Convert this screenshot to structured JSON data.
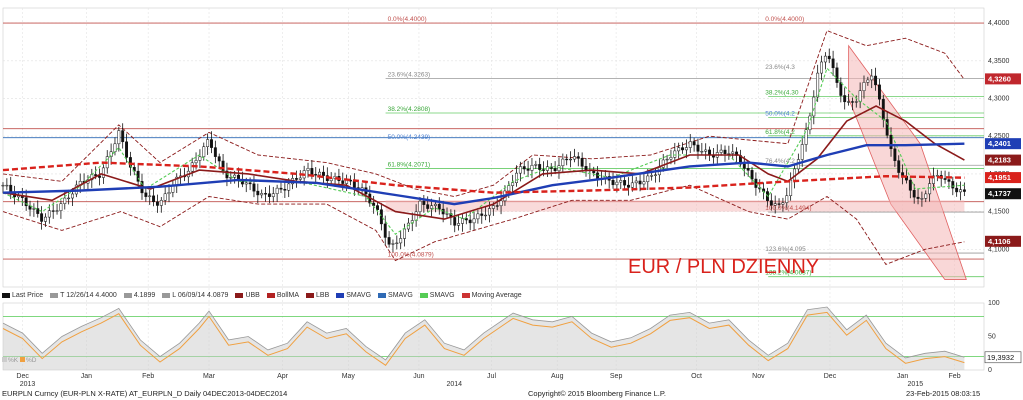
{
  "chart_data": {
    "type": "candlestick",
    "title": "EUR / PLN DZIENNY",
    "price_axis": {
      "min": 4.05,
      "max": 4.42,
      "ticks": [
        "4,1000",
        "4,1500",
        "4,2000",
        "4,2500",
        "4,3000",
        "4,3500",
        "4,4000"
      ]
    },
    "osc_axis": {
      "ticks": [
        "0",
        "50",
        "100"
      ]
    },
    "x_labels": [
      {
        "label": "Dec",
        "t": 0.02
      },
      {
        "label": "Jan",
        "t": 0.085
      },
      {
        "label": "Feb",
        "t": 0.148
      },
      {
        "label": "Mar",
        "t": 0.21
      },
      {
        "label": "Apr",
        "t": 0.285
      },
      {
        "label": "May",
        "t": 0.352
      },
      {
        "label": "Jun",
        "t": 0.424
      },
      {
        "label": "Jul",
        "t": 0.498
      },
      {
        "label": "Aug",
        "t": 0.565
      },
      {
        "label": "Sep",
        "t": 0.625
      },
      {
        "label": "Oct",
        "t": 0.707
      },
      {
        "label": "Nov",
        "t": 0.77
      },
      {
        "label": "Dec",
        "t": 0.843
      },
      {
        "label": "Jan",
        "t": 0.917
      },
      {
        "label": "Feb",
        "t": 0.97
      }
    ],
    "year_labels": [
      {
        "label": "2013",
        "t": 0.025
      },
      {
        "label": "2014",
        "t": 0.46
      },
      {
        "label": "2015",
        "t": 0.93
      }
    ],
    "price_path": [
      [
        0,
        4.185
      ],
      [
        0.02,
        4.165
      ],
      [
        0.04,
        4.14
      ],
      [
        0.06,
        4.16
      ],
      [
        0.08,
        4.19
      ],
      [
        0.1,
        4.2
      ],
      [
        0.118,
        4.255
      ],
      [
        0.13,
        4.21
      ],
      [
        0.145,
        4.17
      ],
      [
        0.16,
        4.16
      ],
      [
        0.175,
        4.19
      ],
      [
        0.19,
        4.205
      ],
      [
        0.21,
        4.245
      ],
      [
        0.225,
        4.2
      ],
      [
        0.245,
        4.19
      ],
      [
        0.265,
        4.17
      ],
      [
        0.285,
        4.18
      ],
      [
        0.31,
        4.205
      ],
      [
        0.33,
        4.195
      ],
      [
        0.35,
        4.19
      ],
      [
        0.365,
        4.18
      ],
      [
        0.38,
        4.155
      ],
      [
        0.395,
        4.1
      ],
      [
        0.41,
        4.125
      ],
      [
        0.425,
        4.16
      ],
      [
        0.445,
        4.155
      ],
      [
        0.46,
        4.135
      ],
      [
        0.48,
        4.14
      ],
      [
        0.5,
        4.155
      ],
      [
        0.51,
        4.17
      ],
      [
        0.525,
        4.205
      ],
      [
        0.54,
        4.21
      ],
      [
        0.56,
        4.205
      ],
      [
        0.58,
        4.225
      ],
      [
        0.6,
        4.2
      ],
      [
        0.62,
        4.19
      ],
      [
        0.64,
        4.185
      ],
      [
        0.66,
        4.195
      ],
      [
        0.68,
        4.225
      ],
      [
        0.7,
        4.24
      ],
      [
        0.72,
        4.225
      ],
      [
        0.74,
        4.23
      ],
      [
        0.75,
        4.22
      ],
      [
        0.765,
        4.19
      ],
      [
        0.78,
        4.165
      ],
      [
        0.79,
        4.155
      ],
      [
        0.8,
        4.175
      ],
      [
        0.81,
        4.22
      ],
      [
        0.82,
        4.26
      ],
      [
        0.83,
        4.33
      ],
      [
        0.84,
        4.365
      ],
      [
        0.85,
        4.32
      ],
      [
        0.86,
        4.29
      ],
      [
        0.87,
        4.3
      ],
      [
        0.885,
        4.335
      ],
      [
        0.895,
        4.29
      ],
      [
        0.905,
        4.23
      ],
      [
        0.915,
        4.2
      ],
      [
        0.925,
        4.18
      ],
      [
        0.935,
        4.16
      ],
      [
        0.945,
        4.19
      ],
      [
        0.955,
        4.2
      ],
      [
        0.965,
        4.185
      ],
      [
        0.98,
        4.1737
      ]
    ],
    "ma_red_dashed_path": [
      [
        0,
        4.205
      ],
      [
        0.1,
        4.215
      ],
      [
        0.2,
        4.21
      ],
      [
        0.3,
        4.2
      ],
      [
        0.4,
        4.185
      ],
      [
        0.5,
        4.175
      ],
      [
        0.6,
        4.178
      ],
      [
        0.7,
        4.182
      ],
      [
        0.8,
        4.19
      ],
      [
        0.9,
        4.197
      ],
      [
        0.98,
        4.195
      ]
    ],
    "ma_blue_path": [
      [
        0,
        4.175
      ],
      [
        0.08,
        4.178
      ],
      [
        0.16,
        4.183
      ],
      [
        0.24,
        4.192
      ],
      [
        0.32,
        4.188
      ],
      [
        0.4,
        4.172
      ],
      [
        0.46,
        4.16
      ],
      [
        0.5,
        4.168
      ],
      [
        0.56,
        4.185
      ],
      [
        0.62,
        4.195
      ],
      [
        0.7,
        4.21
      ],
      [
        0.76,
        4.215
      ],
      [
        0.8,
        4.21
      ],
      [
        0.84,
        4.225
      ],
      [
        0.88,
        4.238
      ],
      [
        0.92,
        4.238
      ],
      [
        0.98,
        4.2401
      ]
    ],
    "ma_darkred_path": [
      [
        0,
        4.175
      ],
      [
        0.05,
        4.165
      ],
      [
        0.1,
        4.2
      ],
      [
        0.15,
        4.18
      ],
      [
        0.2,
        4.205
      ],
      [
        0.25,
        4.2
      ],
      [
        0.3,
        4.19
      ],
      [
        0.35,
        4.185
      ],
      [
        0.4,
        4.15
      ],
      [
        0.45,
        4.14
      ],
      [
        0.5,
        4.16
      ],
      [
        0.55,
        4.2
      ],
      [
        0.6,
        4.205
      ],
      [
        0.65,
        4.2
      ],
      [
        0.7,
        4.225
      ],
      [
        0.75,
        4.225
      ],
      [
        0.78,
        4.2
      ],
      [
        0.8,
        4.19
      ],
      [
        0.83,
        4.22
      ],
      [
        0.86,
        4.27
      ],
      [
        0.89,
        4.29
      ],
      [
        0.92,
        4.27
      ],
      [
        0.95,
        4.24
      ],
      [
        0.98,
        4.2183
      ]
    ],
    "green_dashed_path": [
      [
        0,
        4.175
      ],
      [
        0.04,
        4.15
      ],
      [
        0.08,
        4.185
      ],
      [
        0.118,
        4.235
      ],
      [
        0.145,
        4.18
      ],
      [
        0.2,
        4.225
      ],
      [
        0.24,
        4.19
      ],
      [
        0.3,
        4.19
      ],
      [
        0.37,
        4.17
      ],
      [
        0.4,
        4.12
      ],
      [
        0.44,
        4.155
      ],
      [
        0.47,
        4.14
      ],
      [
        0.52,
        4.19
      ],
      [
        0.56,
        4.21
      ],
      [
        0.62,
        4.195
      ],
      [
        0.68,
        4.225
      ],
      [
        0.74,
        4.225
      ],
      [
        0.78,
        4.17
      ],
      [
        0.82,
        4.26
      ],
      [
        0.84,
        4.34
      ],
      [
        0.87,
        4.3
      ],
      [
        0.9,
        4.27
      ],
      [
        0.93,
        4.18
      ],
      [
        0.98,
        4.185
      ]
    ],
    "bands_upper_path": [
      [
        0,
        4.2
      ],
      [
        0.06,
        4.19
      ],
      [
        0.118,
        4.265
      ],
      [
        0.16,
        4.215
      ],
      [
        0.21,
        4.255
      ],
      [
        0.26,
        4.225
      ],
      [
        0.33,
        4.215
      ],
      [
        0.38,
        4.2
      ],
      [
        0.42,
        4.18
      ],
      [
        0.46,
        4.17
      ],
      [
        0.5,
        4.185
      ],
      [
        0.54,
        4.225
      ],
      [
        0.6,
        4.22
      ],
      [
        0.66,
        4.225
      ],
      [
        0.72,
        4.25
      ],
      [
        0.76,
        4.245
      ],
      [
        0.8,
        4.24
      ],
      [
        0.84,
        4.39
      ],
      [
        0.88,
        4.37
      ],
      [
        0.92,
        4.38
      ],
      [
        0.96,
        4.36
      ],
      [
        0.98,
        4.325
      ]
    ],
    "bands_lower_path": [
      [
        0,
        4.15
      ],
      [
        0.06,
        4.125
      ],
      [
        0.12,
        4.15
      ],
      [
        0.16,
        4.13
      ],
      [
        0.21,
        4.17
      ],
      [
        0.26,
        4.16
      ],
      [
        0.33,
        4.16
      ],
      [
        0.38,
        4.125
      ],
      [
        0.4,
        4.085
      ],
      [
        0.44,
        4.11
      ],
      [
        0.48,
        4.125
      ],
      [
        0.52,
        4.14
      ],
      [
        0.58,
        4.165
      ],
      [
        0.64,
        4.165
      ],
      [
        0.7,
        4.185
      ],
      [
        0.76,
        4.15
      ],
      [
        0.8,
        4.14
      ],
      [
        0.84,
        4.17
      ],
      [
        0.87,
        4.14
      ],
      [
        0.9,
        4.08
      ],
      [
        0.94,
        4.1
      ],
      [
        0.98,
        4.11
      ]
    ],
    "osc_path": [
      [
        0,
        70
      ],
      [
        0.02,
        55
      ],
      [
        0.04,
        25
      ],
      [
        0.06,
        50
      ],
      [
        0.08,
        65
      ],
      [
        0.1,
        78
      ],
      [
        0.118,
        92
      ],
      [
        0.14,
        45
      ],
      [
        0.16,
        20
      ],
      [
        0.18,
        40
      ],
      [
        0.2,
        70
      ],
      [
        0.21,
        88
      ],
      [
        0.23,
        45
      ],
      [
        0.25,
        50
      ],
      [
        0.27,
        30
      ],
      [
        0.29,
        40
      ],
      [
        0.31,
        72
      ],
      [
        0.33,
        55
      ],
      [
        0.35,
        62
      ],
      [
        0.37,
        35
      ],
      [
        0.39,
        15
      ],
      [
        0.41,
        55
      ],
      [
        0.43,
        75
      ],
      [
        0.45,
        40
      ],
      [
        0.47,
        30
      ],
      [
        0.49,
        55
      ],
      [
        0.52,
        85
      ],
      [
        0.54,
        75
      ],
      [
        0.56,
        72
      ],
      [
        0.58,
        80
      ],
      [
        0.6,
        55
      ],
      [
        0.62,
        42
      ],
      [
        0.64,
        48
      ],
      [
        0.66,
        62
      ],
      [
        0.68,
        82
      ],
      [
        0.7,
        86
      ],
      [
        0.72,
        70
      ],
      [
        0.74,
        75
      ],
      [
        0.76,
        45
      ],
      [
        0.78,
        22
      ],
      [
        0.8,
        40
      ],
      [
        0.82,
        90
      ],
      [
        0.84,
        94
      ],
      [
        0.86,
        60
      ],
      [
        0.88,
        82
      ],
      [
        0.9,
        40
      ],
      [
        0.92,
        18
      ],
      [
        0.94,
        25
      ],
      [
        0.96,
        28
      ],
      [
        0.98,
        19
      ]
    ],
    "hlines": [
      {
        "y": 4.4,
        "color": "#c0504d"
      },
      {
        "y": 4.26,
        "color": "#c0504d"
      },
      {
        "y": 4.248,
        "color": "#2f6ab5"
      },
      {
        "y": 4.1632,
        "color": "#c0504d"
      },
      {
        "y": 4.087,
        "color": "#c0504d"
      }
    ],
    "fib_lines": [
      {
        "y": 4.3263,
        "color": "#999999",
        "x0": 0.39
      },
      {
        "y": 4.2808,
        "color": "#66cc66",
        "x0": 0.39
      },
      {
        "y": 4.2071,
        "color": "#66cc66",
        "x0": 0.39
      },
      {
        "y": 4.3025,
        "color": "#66cc66",
        "x0": 0.78
      },
      {
        "y": 4.275,
        "color": "#66cc66",
        "x0": 0.78
      },
      {
        "y": 4.2505,
        "color": "#66cc66",
        "x0": 0.78
      },
      {
        "y": 4.2115,
        "color": "#999999",
        "x0": 0.78
      },
      {
        "y": 4.1494,
        "color": "#999999",
        "x0": 0.78
      },
      {
        "y": 4.095,
        "color": "#999999",
        "x0": 0.78
      },
      {
        "y": 4.0637,
        "color": "#66cc66",
        "x0": 0.78
      }
    ],
    "fib_labels": [
      {
        "text": "0.0%(4.4000)",
        "t": 0.39,
        "y": 4.4,
        "color": "#c0504d"
      },
      {
        "text": "23.6%(4.3263)",
        "t": 0.39,
        "y": 4.3263,
        "color": "#888888"
      },
      {
        "text": "38.2%(4.2808)",
        "t": 0.39,
        "y": 4.2808,
        "color": "#3aa83a"
      },
      {
        "text": "50.0%(4.2439)",
        "t": 0.39,
        "y": 4.2439,
        "color": "#4a7fd0"
      },
      {
        "text": "61.8%(4.2071)",
        "t": 0.39,
        "y": 4.2071,
        "color": "#3aa83a"
      },
      {
        "text": "100.0%(4.0879)",
        "t": 0.39,
        "y": 4.0879,
        "color": "#c0504d"
      },
      {
        "text": "0.0%(4.4000)",
        "t": 0.775,
        "y": 4.4,
        "color": "#c0504d"
      },
      {
        "text": "23.6%(4.3",
        "t": 0.775,
        "y": 4.3363,
        "color": "#888888"
      },
      {
        "text": "38.2%(4.30",
        "t": 0.775,
        "y": 4.3025,
        "color": "#3aa83a"
      },
      {
        "text": "50.0%(4.2",
        "t": 0.775,
        "y": 4.275,
        "color": "#4a7fd0"
      },
      {
        "text": "61.8%(4.2",
        "t": 0.775,
        "y": 4.2505,
        "color": "#3aa83a"
      },
      {
        "text": "76.4%(4.2",
        "t": 0.775,
        "y": 4.2115,
        "color": "#888888"
      },
      {
        "text": "100.0%(4.1494)",
        "t": 0.775,
        "y": 4.1494,
        "color": "#c0504d"
      },
      {
        "text": "123.6%(4.095",
        "t": 0.775,
        "y": 4.095,
        "color": "#888888"
      },
      {
        "text": "138.2%(4.0637)",
        "t": 0.775,
        "y": 4.0637,
        "color": "#3aa83a"
      }
    ],
    "value_tags": [
      {
        "text": "4,3260",
        "y": 4.326,
        "color": "#c0272d"
      },
      {
        "text": "4,2401",
        "y": 4.2401,
        "color": "#1f3eb5"
      },
      {
        "text": "4,2183",
        "y": 4.2183,
        "color": "#8b1a1a"
      },
      {
        "text": "4,1951",
        "y": 4.1951,
        "color": "#d9221c"
      },
      {
        "text": "4,1737",
        "y": 4.1737,
        "color": "#111111"
      },
      {
        "text": "4,1106",
        "y": 4.1106,
        "color": "#8b1a1a"
      }
    ],
    "osc_tag": "19,3932",
    "annotation": "EUR / PLN DZIENNY"
  },
  "legend": {
    "items": [
      {
        "label": "Last Price",
        "color": "#111111"
      },
      {
        "label": "T 12/26/14 4.4000",
        "color": "#999999"
      },
      {
        "label": "4.1899",
        "color": "#999999"
      },
      {
        "label": "L 06/09/14 4.0879",
        "color": "#999999"
      },
      {
        "label": "UBB",
        "color": "#8b1a1a"
      },
      {
        "label": "BollMA",
        "color": "#b22222"
      },
      {
        "label": "LBB",
        "color": "#8b1a1a"
      },
      {
        "label": "SMAVG",
        "color": "#1f3eb5"
      },
      {
        "label": "SMAVG",
        "color": "#2f6ab5"
      },
      {
        "label": "SMAVG",
        "color": "#55cc55"
      },
      {
        "label": "Moving Average",
        "color": "#cc3333"
      }
    ]
  },
  "osc_legend": {
    "k": "%K",
    "d": "%D"
  },
  "footer": {
    "left": "EURPLN Curncy (EUR-PLN X-RATE) AT_EURPLN_D  Daily 04DEC2013-04DEC2014",
    "center": "Copyright© 2015 Bloomberg Finance L.P.",
    "right": "23-Feb-2015 08:03:15"
  }
}
